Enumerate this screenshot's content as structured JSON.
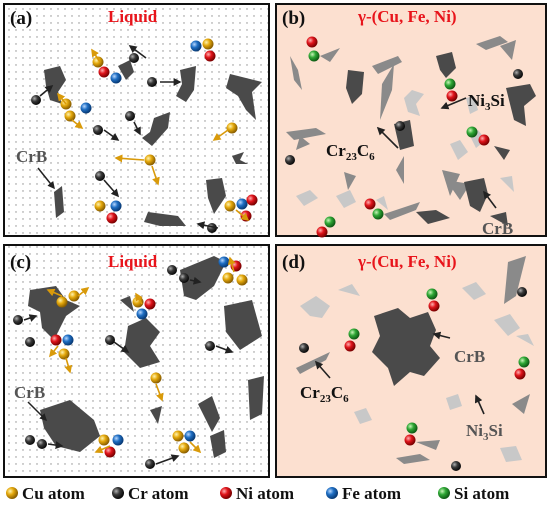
{
  "panels": {
    "a": {
      "label": "(a)",
      "title": "Liquid",
      "crb": "CrB"
    },
    "b": {
      "label": "(b)",
      "title": "γ-(Cu, Fe, Ni)",
      "cr23c6": {
        "base": "Cr",
        "s1": "23",
        "mid": "C",
        "s2": "6"
      },
      "ni3si": {
        "base": "Ni",
        "s1": "3",
        "mid": "Si"
      },
      "crb": "CrB"
    },
    "c": {
      "label": "(c)",
      "title": "Liquid",
      "crb": "CrB"
    },
    "d": {
      "label": "(d)",
      "title": "γ-(Cu, Fe, Ni)",
      "crb": "CrB",
      "cr23c6": {
        "base": "Cr",
        "s1": "23",
        "mid": "C",
        "s2": "6"
      },
      "ni3si": {
        "base": "Ni",
        "s1": "3",
        "mid": "Si"
      }
    }
  },
  "legend": [
    {
      "label": "Cu atom",
      "color": "#e5a90c"
    },
    {
      "label": "Cr atom",
      "color": "#3a3a3a"
    },
    {
      "label": "Ni atom",
      "color": "#e0141b"
    },
    {
      "label": "Fe atom",
      "color": "#1f6fc4"
    },
    {
      "label": "Si atom",
      "color": "#2fa836"
    }
  ],
  "colors": {
    "liquid_bg": "#ffffff",
    "solid_bg": "#fce0d0",
    "title_red": "#e8141b",
    "crb_dark": "#4a4a4a",
    "carbide_gray": "#8a8a8a",
    "silicide_light": "#c8c8c8"
  }
}
